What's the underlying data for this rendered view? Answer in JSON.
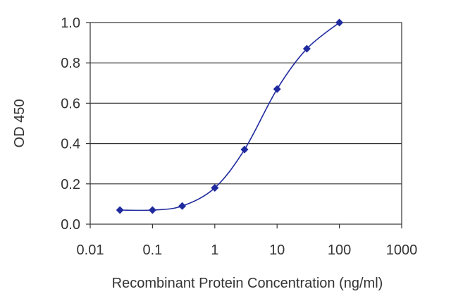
{
  "chart_data": {
    "type": "line",
    "xlabel": "Recombinant Protein Concentration (ng/ml)",
    "ylabel": "OD 450",
    "x_scale": "log",
    "xlim": [
      0.01,
      1000
    ],
    "ylim": [
      0.0,
      1.0
    ],
    "x_ticks": [
      0.01,
      0.1,
      1,
      10,
      100,
      1000
    ],
    "x_tick_labels": [
      "0.01",
      "0.1",
      "1",
      "10",
      "100",
      "1000"
    ],
    "y_ticks": [
      0.0,
      0.2,
      0.4,
      0.6,
      0.8,
      1.0
    ],
    "y_tick_labels": [
      "0.0",
      "0.2",
      "0.4",
      "0.6",
      "0.8",
      "1.0"
    ],
    "grid": "horizontal",
    "series": [
      {
        "color": "#1f2a9e",
        "marker": "diamond",
        "x": [
          0.03,
          0.1,
          0.3,
          1,
          3,
          10,
          30,
          100
        ],
        "y": [
          0.07,
          0.07,
          0.09,
          0.18,
          0.37,
          0.67,
          0.87,
          1.0
        ]
      }
    ]
  }
}
